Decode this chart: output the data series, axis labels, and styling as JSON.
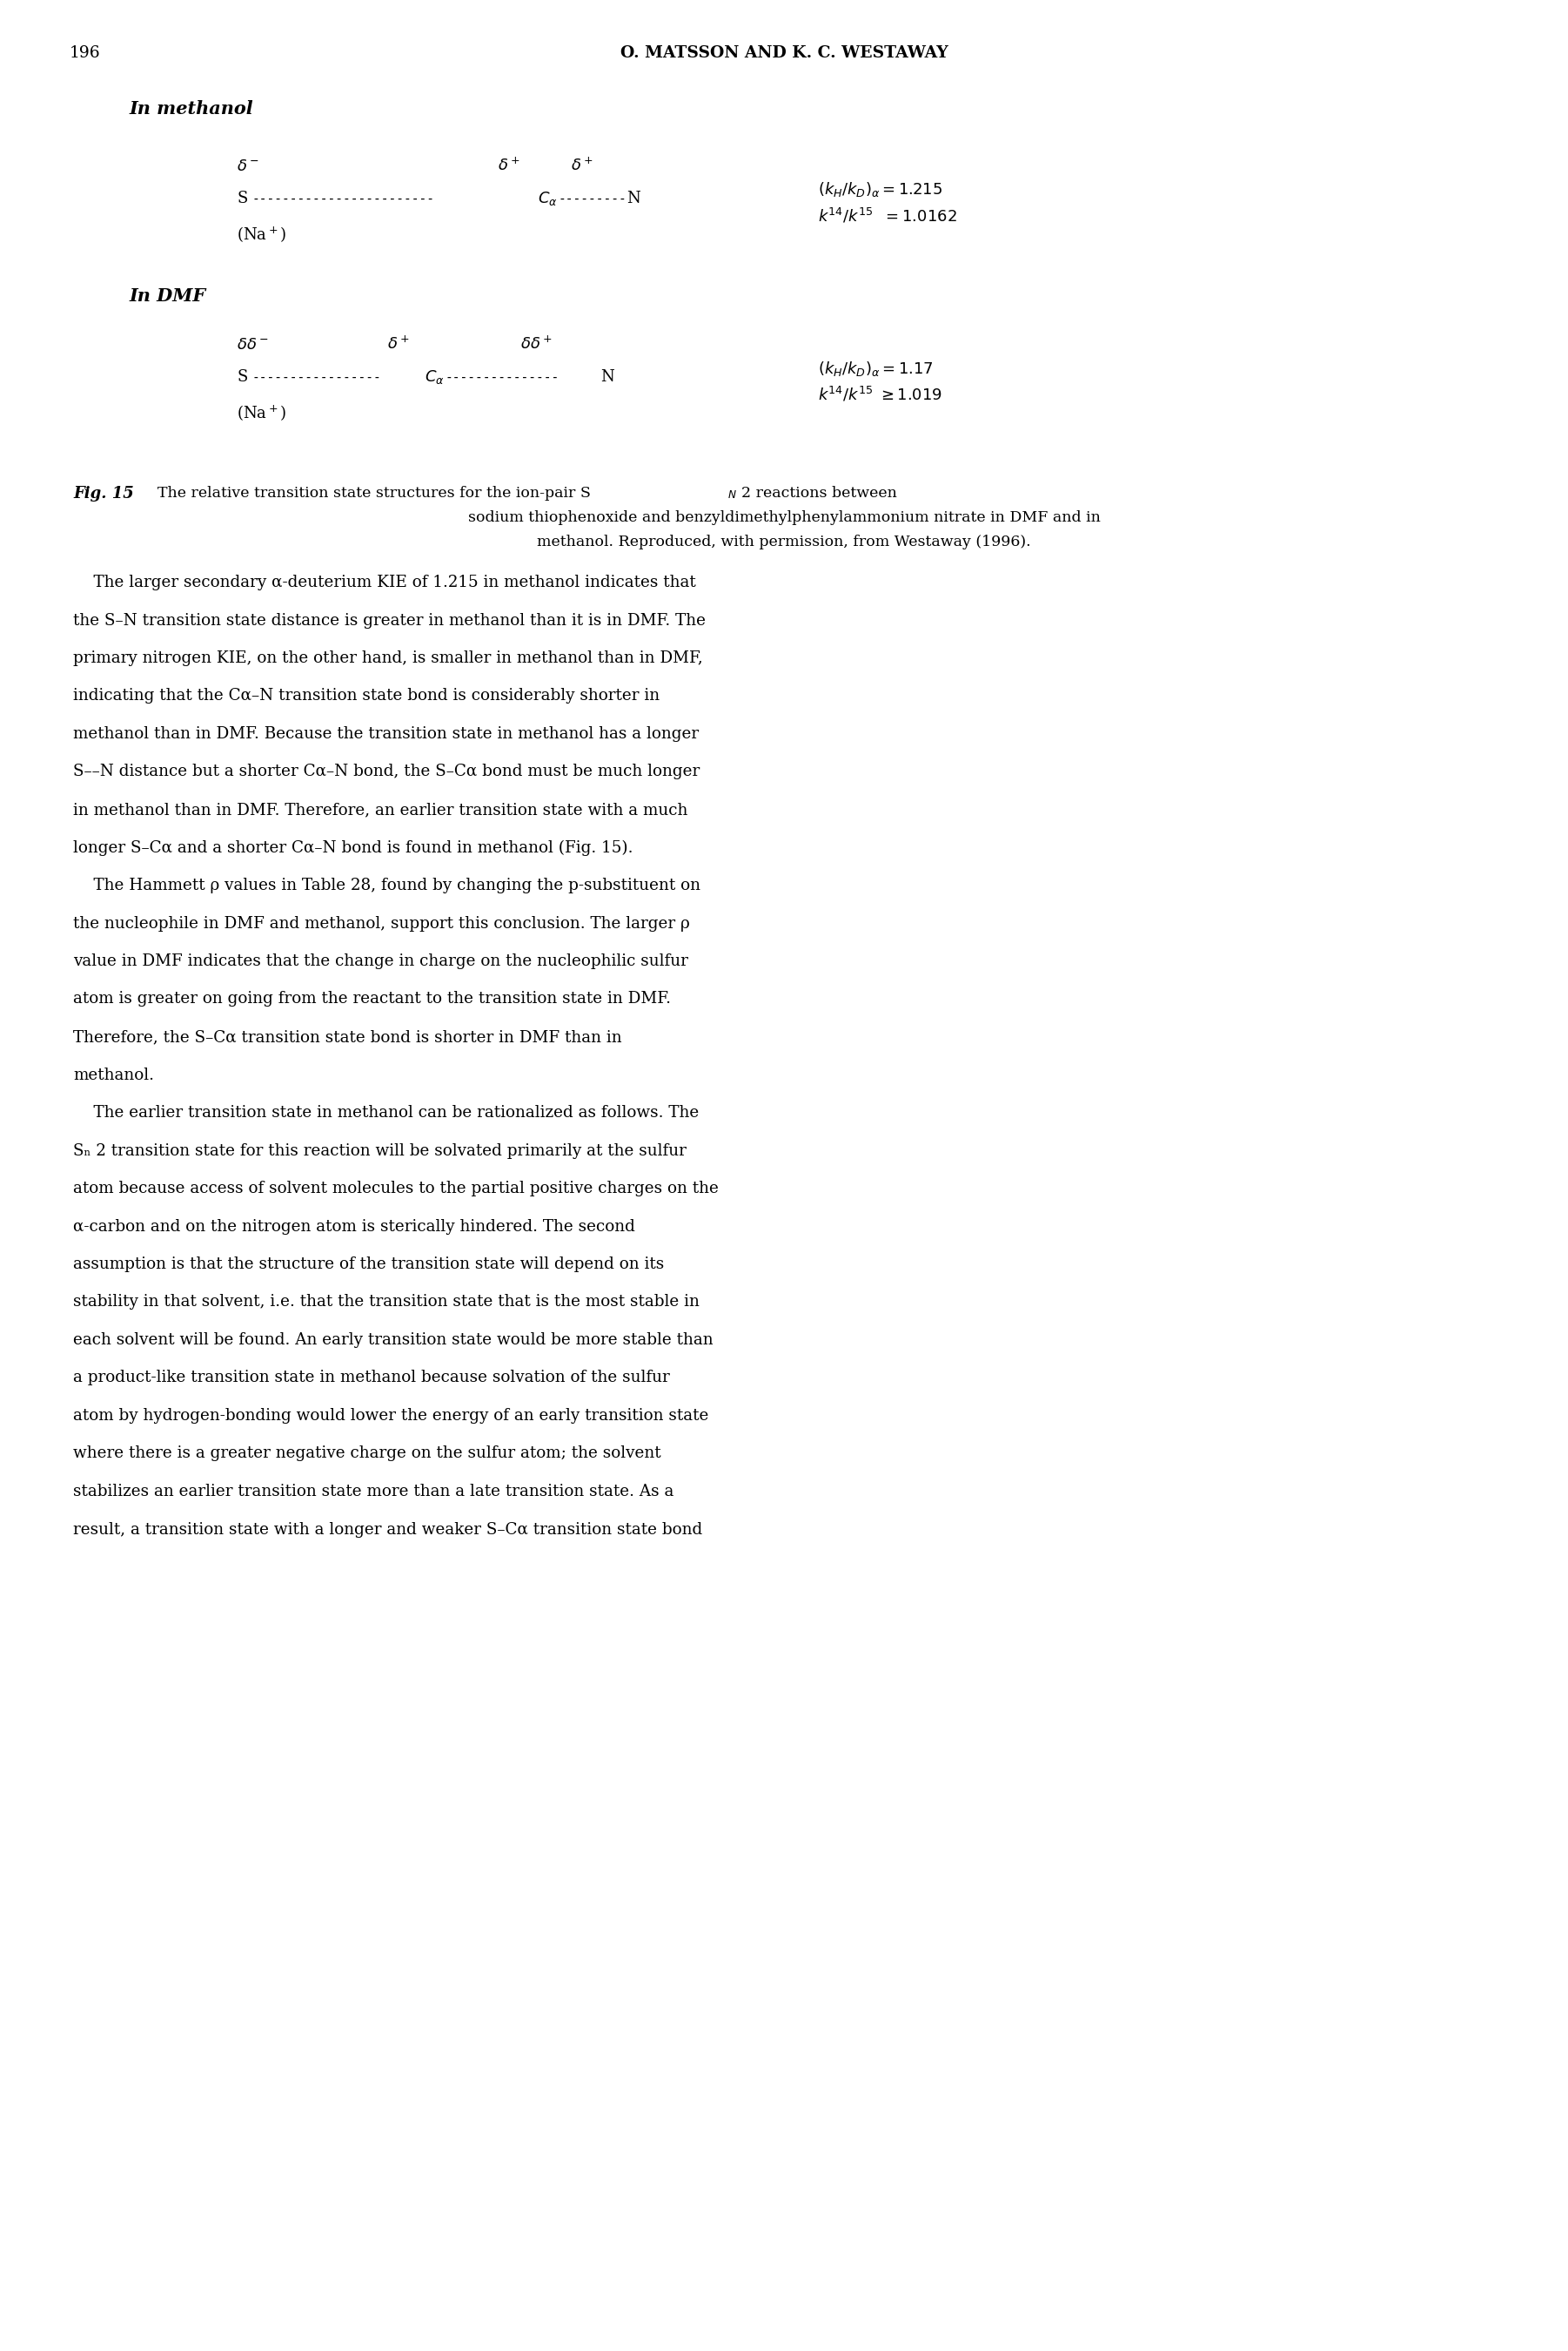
{
  "page_number": "196",
  "header": "O. MATSSON AND K. C. WESTAWAY",
  "background_color": "#ffffff",
  "fig_width": 18.02,
  "fig_height": 27.0,
  "body_text": [
    "    The larger secondary α-deuterium KIE of 1.215 in methanol indicates that",
    "the S–N transition state distance is greater in methanol than it is in DMF. The",
    "primary nitrogen KIE, on the other hand, is smaller in methanol than in DMF,",
    "indicating that the Cα–N transition state bond is considerably shorter in",
    "methanol than in DMF. Because the transition state in methanol has a longer",
    "S––N distance but a shorter Cα–N bond, the S–Cα bond must be much longer",
    "in methanol than in DMF. Therefore, an earlier transition state with a much",
    "longer S–Cα and a shorter Cα–N bond is found in methanol (Fig. 15).",
    "    The Hammett ρ values in Table 28, found by changing the p-substituent on",
    "the nucleophile in DMF and methanol, support this conclusion. The larger ρ",
    "value in DMF indicates that the change in charge on the nucleophilic sulfur",
    "atom is greater on going from the reactant to the transition state in DMF.",
    "Therefore, the S–Cα transition state bond is shorter in DMF than in",
    "methanol.",
    "    The earlier transition state in methanol can be rationalized as follows. The",
    "Sₙ 2 transition state for this reaction will be solvated primarily at the sulfur",
    "atom because access of solvent molecules to the partial positive charges on the",
    "α-carbon and on the nitrogen atom is sterically hindered. The second",
    "assumption is that the structure of the transition state will depend on its",
    "stability in that solvent, i.e. that the transition state that is the most stable in",
    "each solvent will be found. An early transition state would be more stable than",
    "a product-like transition state in methanol because solvation of the sulfur",
    "atom by hydrogen-bonding would lower the energy of an early transition state",
    "where there is a greater negative charge on the sulfur atom; the solvent",
    "stabilizes an earlier transition state more than a late transition state. As a",
    "result, a transition state with a longer and weaker S–Cα transition state bond"
  ]
}
